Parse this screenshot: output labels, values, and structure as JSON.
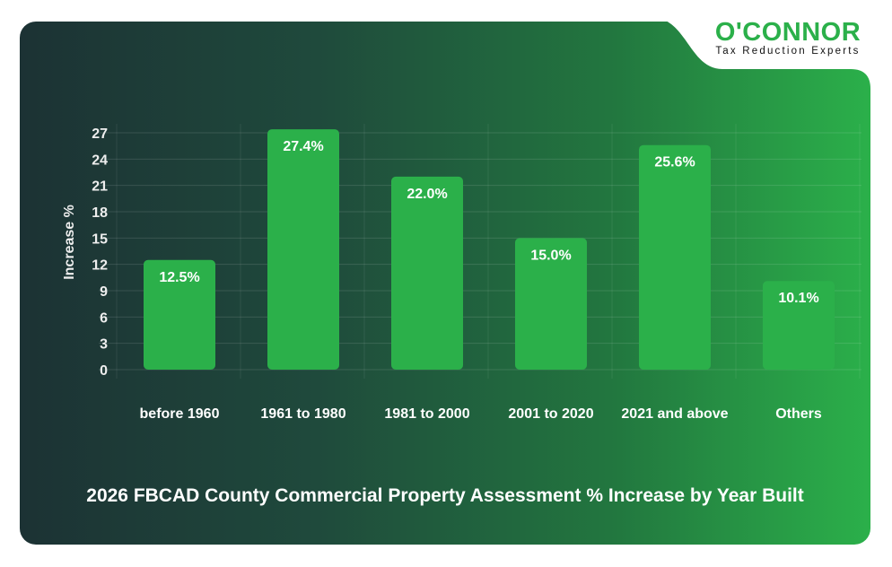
{
  "logo": {
    "name": "O'CONNOR",
    "tagline": "Tax Reduction Experts"
  },
  "colors": {
    "bar": "#2bb04a",
    "brand_green": "#2bb04a",
    "background_dark": "#1c3234"
  },
  "chart_data": {
    "type": "bar",
    "title": "2026 FBCAD County Commercial Property Assessment % Increase by Year Built",
    "ylabel": "Increase %",
    "xlabel": "",
    "categories": [
      "before 1960",
      "1961 to 1980",
      "1981 to 2000",
      "2001 to 2020",
      "2021 and above",
      "Others"
    ],
    "values": [
      12.5,
      27.4,
      22.0,
      15.0,
      25.6,
      10.1
    ],
    "data_labels": [
      "12.5%",
      "27.4%",
      "22.0%",
      "15.0%",
      "25.6%",
      "10.1%"
    ],
    "yticks": [
      0,
      3,
      6,
      9,
      12,
      15,
      18,
      21,
      24,
      27
    ],
    "ylim": [
      0,
      27
    ],
    "grid": true,
    "legend": "none"
  }
}
